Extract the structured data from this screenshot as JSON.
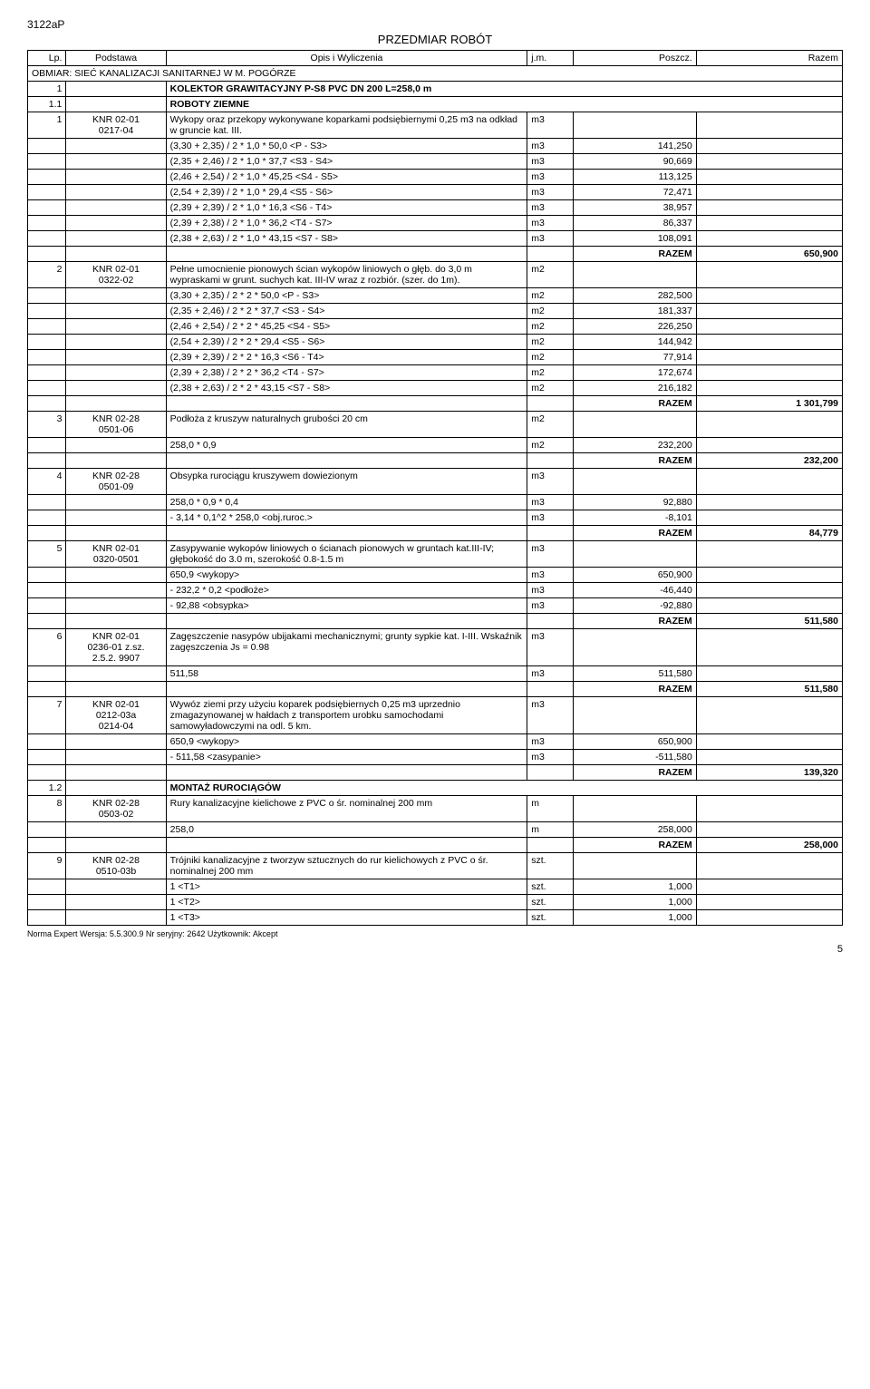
{
  "doc_id": "3122aP",
  "title": "PRZEDMIAR ROBÓT",
  "header": {
    "lp": "Lp.",
    "podstawa": "Podstawa",
    "opis": "Opis i Wyliczenia",
    "jm": "j.m.",
    "poszcz": "Poszcz.",
    "razem": "Razem"
  },
  "obmiar": "OBMIAR: SIEĆ KANALIZACJI SANITARNEJ W M. POGÓRZE",
  "sec1": {
    "num": "1",
    "label": "KOLEKTOR GRAWITACYJNY P-S8 PVC DN 200 L=258,0 m"
  },
  "sec11": {
    "num": "1.1",
    "label": "ROBOTY ZIEMNE"
  },
  "r1": {
    "lp": "1",
    "pod": "KNR 02-01\n0217-04",
    "desc": "Wykopy oraz przekopy wykonywane koparkami podsiębiernymi 0,25 m3 na odkład w gruncie kat. III.",
    "jm": "m3",
    "rows": [
      {
        "d": "(3,30 + 2,35) / 2 * 1,0 * 50,0 <P - S3>",
        "j": "m3",
        "v": "141,250"
      },
      {
        "d": "(2,35 + 2,46) / 2 * 1,0 * 37,7 <S3 - S4>",
        "j": "m3",
        "v": "90,669"
      },
      {
        "d": "(2,46 + 2,54) / 2 * 1,0 * 45,25 <S4 - S5>",
        "j": "m3",
        "v": "113,125"
      },
      {
        "d": "(2,54 + 2,39) / 2 * 1,0 * 29,4 <S5 - S6>",
        "j": "m3",
        "v": "72,471"
      },
      {
        "d": "(2,39 + 2,39) / 2 * 1,0 * 16,3 <S6 - T4>",
        "j": "m3",
        "v": "38,957"
      },
      {
        "d": "(2,39 + 2,38) / 2 * 1,0 * 36,2 <T4 - S7>",
        "j": "m3",
        "v": "86,337"
      },
      {
        "d": "(2,38 + 2,63) / 2 * 1,0 * 43,15 <S7 - S8>",
        "j": "m3",
        "v": "108,091"
      }
    ],
    "razem_label": "RAZEM",
    "razem": "650,900"
  },
  "r2": {
    "lp": "2",
    "pod": "KNR 02-01\n0322-02",
    "desc": "Pełne umocnienie pionowych ścian wykopów liniowych o głęb. do 3,0 m wypraskami w grunt. suchych kat. III-IV wraz z rozbiór. (szer. do 1m).",
    "jm": "m2",
    "rows": [
      {
        "d": "(3,30 + 2,35) / 2 * 2 * 50,0 <P - S3>",
        "j": "m2",
        "v": "282,500"
      },
      {
        "d": "(2,35 + 2,46) / 2 * 2 * 37,7 <S3 - S4>",
        "j": "m2",
        "v": "181,337"
      },
      {
        "d": "(2,46 + 2,54) / 2 * 2 * 45,25 <S4 - S5>",
        "j": "m2",
        "v": "226,250"
      },
      {
        "d": "(2,54 + 2,39) / 2 * 2 * 29,4 <S5 - S6>",
        "j": "m2",
        "v": "144,942"
      },
      {
        "d": "(2,39 + 2,39) / 2 * 2 * 16,3 <S6 - T4>",
        "j": "m2",
        "v": "77,914"
      },
      {
        "d": "(2,39 + 2,38) / 2 * 2 * 36,2 <T4 - S7>",
        "j": "m2",
        "v": "172,674"
      },
      {
        "d": "(2,38 + 2,63) / 2 * 2 * 43,15 <S7 - S8>",
        "j": "m2",
        "v": "216,182"
      }
    ],
    "razem_label": "RAZEM",
    "razem": "1 301,799"
  },
  "r3": {
    "lp": "3",
    "pod": "KNR 02-28\n0501-06",
    "desc": "Podłoża z kruszyw naturalnych grubości 20 cm",
    "jm": "m2",
    "rows": [
      {
        "d": "258,0 * 0,9",
        "j": "m2",
        "v": "232,200"
      }
    ],
    "razem_label": "RAZEM",
    "razem": "232,200"
  },
  "r4": {
    "lp": "4",
    "pod": "KNR 02-28\n0501-09",
    "desc": "Obsypka rurociągu kruszywem dowiezionym",
    "jm": "m3",
    "rows": [
      {
        "d": "258,0 * 0,9 * 0,4",
        "j": "m3",
        "v": "92,880"
      },
      {
        "d": "- 3,14 * 0,1^2 * 258,0 <obj.ruroc.>",
        "j": "m3",
        "v": "-8,101"
      }
    ],
    "razem_label": "RAZEM",
    "razem": "84,779"
  },
  "r5": {
    "lp": "5",
    "pod": "KNR 02-01\n0320-0501",
    "desc": "Zasypywanie wykopów liniowych o ścianach pionowych w gruntach kat.III-IV; głębokość do 3.0 m, szerokość 0.8-1.5 m",
    "jm": "m3",
    "rows": [
      {
        "d": "650,9 <wykopy>",
        "j": "m3",
        "v": "650,900"
      },
      {
        "d": "- 232,2 * 0,2 <podłoże>",
        "j": "m3",
        "v": "-46,440"
      },
      {
        "d": "- 92,88 <obsypka>",
        "j": "m3",
        "v": "-92,880"
      }
    ],
    "razem_label": "RAZEM",
    "razem": "511,580"
  },
  "r6": {
    "lp": "6",
    "pod": "KNR 02-01\n0236-01 z.sz.\n2.5.2. 9907",
    "desc": "Zagęszczenie nasypów ubijakami mechanicznymi; grunty sypkie kat. I-III. Wskaźnik zagęszczenia Js = 0.98",
    "jm": "m3",
    "rows": [
      {
        "d": "511,58",
        "j": "m3",
        "v": "511,580"
      }
    ],
    "razem_label": "RAZEM",
    "razem": "511,580"
  },
  "r7": {
    "lp": "7",
    "pod": "KNR 02-01\n0212-03a\n0214-04",
    "desc": "Wywóz ziemi przy użyciu koparek podsiębiernych 0,25 m3 uprzednio zmagazynowanej w hałdach z transportem urobku samochodami samowyładowczymi na odl. 5 km.",
    "jm": "m3",
    "rows": [
      {
        "d": "650,9 <wykopy>",
        "j": "m3",
        "v": "650,900"
      },
      {
        "d": "- 511,58 <zasypanie>",
        "j": "m3",
        "v": "-511,580"
      }
    ],
    "razem_label": "RAZEM",
    "razem": "139,320"
  },
  "sec12": {
    "num": "1.2",
    "label": "MONTAŻ RUROCIĄGÓW"
  },
  "r8": {
    "lp": "8",
    "pod": "KNR 02-28\n0503-02",
    "desc": "Rury kanalizacyjne kielichowe z PVC o śr. nominalnej 200 mm",
    "jm": "m",
    "rows": [
      {
        "d": "258,0",
        "j": "m",
        "v": "258,000"
      }
    ],
    "razem_label": "RAZEM",
    "razem": "258,000"
  },
  "r9": {
    "lp": "9",
    "pod": "KNR 02-28\n0510-03b",
    "desc": "Trójniki kanalizacyjne z tworzyw sztucznych do rur kielichowych z PVC o śr. nominalnej 200 mm",
    "jm": "szt.",
    "rows": [
      {
        "d": "1 <T1>",
        "j": "szt.",
        "v": "1,000"
      },
      {
        "d": "1 <T2>",
        "j": "szt.",
        "v": "1,000"
      },
      {
        "d": "1 <T3>",
        "j": "szt.",
        "v": "1,000"
      }
    ]
  },
  "footer": "Norma Expert Wersja: 5.5.300.9 Nr seryjny: 2642 Użytkownik: Akcept",
  "page": "5"
}
